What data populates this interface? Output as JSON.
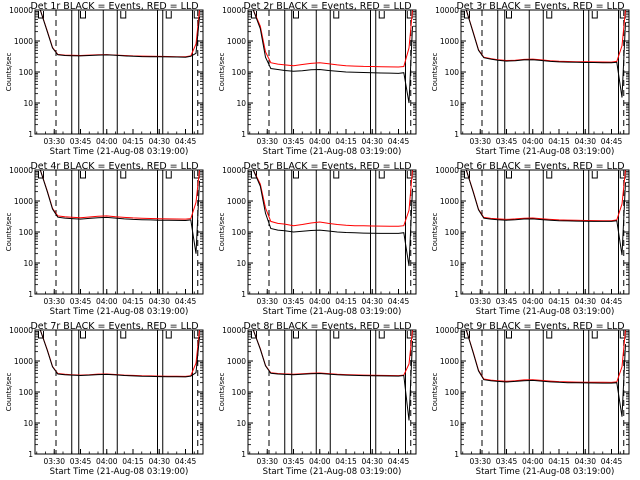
{
  "colors": {
    "events": "#000000",
    "lld": "#ff0000",
    "axes": "#000000",
    "background": "#ffffff"
  },
  "shared": {
    "xlabel": "Start Time (21-Aug-08 03:19:00)",
    "ylabel": "Counts/sec",
    "x_tick_labels": [
      "03:30",
      "03:45",
      "04:00",
      "04:15",
      "04:30",
      "04:45"
    ],
    "y_tick_labels": [
      "1",
      "10",
      "100",
      "1000",
      "10000"
    ],
    "y_scale": "log",
    "ylim": [
      1,
      10000
    ],
    "xlim": [
      "03:19",
      "04:55"
    ]
  },
  "chart_data": [
    {
      "type": "line",
      "title": "Det 1r BLACK = Events, RED = LLD",
      "xlabel": "Start Time (21-Aug-08 03:19:00)",
      "ylabel": "Counts/sec",
      "x": [
        "03:22",
        "03:26",
        "03:29",
        "03:32",
        "03:36",
        "03:40",
        "03:45",
        "03:50",
        "03:55",
        "04:00",
        "04:05",
        "04:10",
        "04:15",
        "04:20",
        "04:25",
        "04:30",
        "04:35",
        "04:40",
        "04:45",
        "04:48",
        "04:51",
        "04:53"
      ],
      "series": [
        {
          "values": [
            10000,
            2000,
            600,
            360,
            340,
            335,
            330,
            340,
            350,
            355,
            345,
            330,
            320,
            315,
            312,
            310,
            308,
            305,
            300,
            320,
            400,
            6000
          ]
        },
        {
          "values": [
            10000,
            2100,
            620,
            370,
            350,
            345,
            340,
            350,
            362,
            365,
            352,
            340,
            330,
            325,
            322,
            318,
            316,
            312,
            310,
            330,
            800,
            10000
          ]
        }
      ]
    },
    {
      "type": "line",
      "title": "Det 2r BLACK = Events, RED = LLD",
      "xlabel": "Start Time (21-Aug-08 03:19:00)",
      "ylabel": "Counts/sec",
      "x": [
        "03:22",
        "03:26",
        "03:29",
        "03:32",
        "03:36",
        "03:40",
        "03:45",
        "03:50",
        "03:55",
        "04:00",
        "04:05",
        "04:10",
        "04:15",
        "04:20",
        "04:25",
        "04:30",
        "04:35",
        "04:40",
        "04:45",
        "04:48",
        "04:51",
        "04:53"
      ],
      "series": [
        {
          "values": [
            10000,
            2500,
            300,
            130,
            120,
            112,
            105,
            110,
            118,
            120,
            112,
            105,
            100,
            98,
            96,
            94,
            93,
            92,
            90,
            95,
            10,
            3000
          ]
        },
        {
          "values": [
            10000,
            3000,
            450,
            200,
            180,
            170,
            160,
            175,
            190,
            200,
            185,
            170,
            160,
            155,
            152,
            150,
            148,
            146,
            145,
            150,
            600,
            10000
          ]
        }
      ]
    },
    {
      "type": "line",
      "title": "Det 3r BLACK = Events, RED = LLD",
      "xlabel": "Start Time (21-Aug-08 03:19:00)",
      "ylabel": "Counts/sec",
      "x": [
        "03:22",
        "03:26",
        "03:29",
        "03:32",
        "03:36",
        "03:40",
        "03:45",
        "03:50",
        "03:55",
        "04:00",
        "04:05",
        "04:10",
        "04:15",
        "04:20",
        "04:25",
        "04:30",
        "04:35",
        "04:40",
        "04:45",
        "04:48",
        "04:51",
        "04:53"
      ],
      "series": [
        {
          "values": [
            10000,
            1800,
            500,
            290,
            260,
            240,
            225,
            230,
            245,
            250,
            235,
            220,
            212,
            208,
            205,
            203,
            202,
            200,
            198,
            205,
            15,
            4000
          ]
        },
        {
          "values": [
            10000,
            1900,
            520,
            300,
            270,
            250,
            235,
            240,
            255,
            260,
            245,
            230,
            222,
            218,
            215,
            213,
            212,
            210,
            208,
            220,
            700,
            10000
          ]
        }
      ]
    },
    {
      "type": "line",
      "title": "Det 4r BLACK = Events, RED = LLD",
      "xlabel": "Start Time (21-Aug-08 03:19:00)",
      "ylabel": "Counts/sec",
      "x": [
        "03:22",
        "03:26",
        "03:29",
        "03:32",
        "03:36",
        "03:40",
        "03:45",
        "03:50",
        "03:55",
        "04:00",
        "04:05",
        "04:10",
        "04:15",
        "04:20",
        "04:25",
        "04:30",
        "04:35",
        "04:40",
        "04:45",
        "04:48",
        "04:51",
        "04:53"
      ],
      "series": [
        {
          "values": [
            10000,
            2000,
            550,
            300,
            280,
            270,
            260,
            275,
            290,
            295,
            280,
            265,
            255,
            250,
            245,
            240,
            238,
            236,
            235,
            245,
            20,
            4500
          ]
        },
        {
          "values": [
            10000,
            2100,
            580,
            330,
            310,
            300,
            290,
            305,
            320,
            330,
            310,
            295,
            285,
            278,
            272,
            268,
            265,
            262,
            260,
            270,
            900,
            10000
          ]
        }
      ]
    },
    {
      "type": "line",
      "title": "Det 5r BLACK = Events, RED = LLD",
      "xlabel": "Start Time (21-Aug-08 03:19:00)",
      "ylabel": "Counts/sec",
      "x": [
        "03:22",
        "03:26",
        "03:29",
        "03:32",
        "03:36",
        "03:40",
        "03:45",
        "03:50",
        "03:55",
        "04:00",
        "04:05",
        "04:10",
        "04:15",
        "04:20",
        "04:25",
        "04:30",
        "04:35",
        "04:40",
        "04:45",
        "04:48",
        "04:51",
        "04:53"
      ],
      "series": [
        {
          "values": [
            10000,
            3000,
            400,
            130,
            115,
            110,
            100,
            105,
            112,
            115,
            108,
            100,
            96,
            94,
            92,
            91,
            90,
            90,
            90,
            95,
            8,
            2500
          ]
        },
        {
          "values": [
            10000,
            3500,
            600,
            220,
            190,
            180,
            160,
            175,
            195,
            210,
            190,
            175,
            165,
            160,
            158,
            156,
            155,
            154,
            153,
            160,
            500,
            10000
          ]
        }
      ]
    },
    {
      "type": "line",
      "title": "Det 6r BLACK = Events, RED = LLD",
      "xlabel": "Start Time (21-Aug-08 03:19:00)",
      "ylabel": "Counts/sec",
      "x": [
        "03:22",
        "03:26",
        "03:29",
        "03:32",
        "03:36",
        "03:40",
        "03:45",
        "03:50",
        "03:55",
        "04:00",
        "04:05",
        "04:10",
        "04:15",
        "04:20",
        "04:25",
        "04:30",
        "04:35",
        "04:40",
        "04:45",
        "04:48",
        "04:51",
        "04:53"
      ],
      "series": [
        {
          "values": [
            10000,
            1900,
            520,
            280,
            260,
            250,
            240,
            250,
            262,
            265,
            252,
            240,
            232,
            228,
            225,
            222,
            220,
            220,
            220,
            230,
            18,
            4000
          ]
        },
        {
          "values": [
            10000,
            2000,
            540,
            295,
            275,
            265,
            255,
            265,
            278,
            282,
            268,
            255,
            246,
            242,
            238,
            235,
            233,
            232,
            232,
            245,
            800,
            10000
          ]
        }
      ]
    },
    {
      "type": "line",
      "title": "Det 7r BLACK = Events, RED = LLD",
      "xlabel": "Start Time (21-Aug-08 03:19:00)",
      "ylabel": "Counts/sec",
      "x": [
        "03:22",
        "03:26",
        "03:29",
        "03:32",
        "03:36",
        "03:40",
        "03:45",
        "03:50",
        "03:55",
        "04:00",
        "04:05",
        "04:10",
        "04:15",
        "04:20",
        "04:25",
        "04:30",
        "04:35",
        "04:40",
        "04:45",
        "04:48",
        "04:51",
        "04:53"
      ],
      "series": [
        {
          "values": [
            10000,
            2200,
            650,
            380,
            360,
            350,
            340,
            350,
            365,
            370,
            355,
            340,
            330,
            322,
            318,
            315,
            312,
            310,
            308,
            325,
            420,
            6000
          ]
        },
        {
          "values": [
            10000,
            2300,
            670,
            395,
            372,
            362,
            352,
            362,
            378,
            382,
            368,
            352,
            342,
            334,
            330,
            326,
            322,
            320,
            318,
            335,
            850,
            10000
          ]
        }
      ]
    },
    {
      "type": "line",
      "title": "Det 8r BLACK = Events, RED = LLD",
      "xlabel": "Start Time (21-Aug-08 03:19:00)",
      "ylabel": "Counts/sec",
      "x": [
        "03:22",
        "03:26",
        "03:29",
        "03:32",
        "03:36",
        "03:40",
        "03:45",
        "03:50",
        "03:55",
        "04:00",
        "04:05",
        "04:10",
        "04:15",
        "04:20",
        "04:25",
        "04:30",
        "04:35",
        "04:40",
        "04:45",
        "04:48",
        "04:51",
        "04:53"
      ],
      "series": [
        {
          "values": [
            10000,
            2400,
            700,
            400,
            380,
            370,
            360,
            372,
            388,
            395,
            378,
            362,
            350,
            342,
            338,
            334,
            330,
            328,
            326,
            340,
            12,
            4500
          ]
        },
        {
          "values": [
            10000,
            2500,
            720,
            415,
            395,
            385,
            375,
            388,
            402,
            410,
            392,
            376,
            364,
            356,
            350,
            346,
            342,
            340,
            338,
            352,
            800,
            10000
          ]
        }
      ]
    },
    {
      "type": "line",
      "title": "Det 9r BLACK = Events, RED = LLD",
      "xlabel": "Start Time (21-Aug-08 03:19:00)",
      "ylabel": "Counts/sec",
      "x": [
        "03:22",
        "03:26",
        "03:29",
        "03:32",
        "03:36",
        "03:40",
        "03:45",
        "03:50",
        "03:55",
        "04:00",
        "04:05",
        "04:10",
        "04:15",
        "04:20",
        "04:25",
        "04:30",
        "04:35",
        "04:40",
        "04:45",
        "04:48",
        "04:51",
        "04:53"
      ],
      "series": [
        {
          "values": [
            10000,
            1800,
            480,
            250,
            230,
            220,
            210,
            220,
            232,
            236,
            224,
            212,
            205,
            200,
            198,
            196,
            195,
            194,
            193,
            200,
            16,
            3500
          ]
        },
        {
          "values": [
            10000,
            1900,
            500,
            262,
            242,
            232,
            222,
            232,
            245,
            250,
            236,
            224,
            216,
            212,
            209,
            207,
            206,
            205,
            204,
            212,
            650,
            10000
          ]
        }
      ]
    }
  ]
}
